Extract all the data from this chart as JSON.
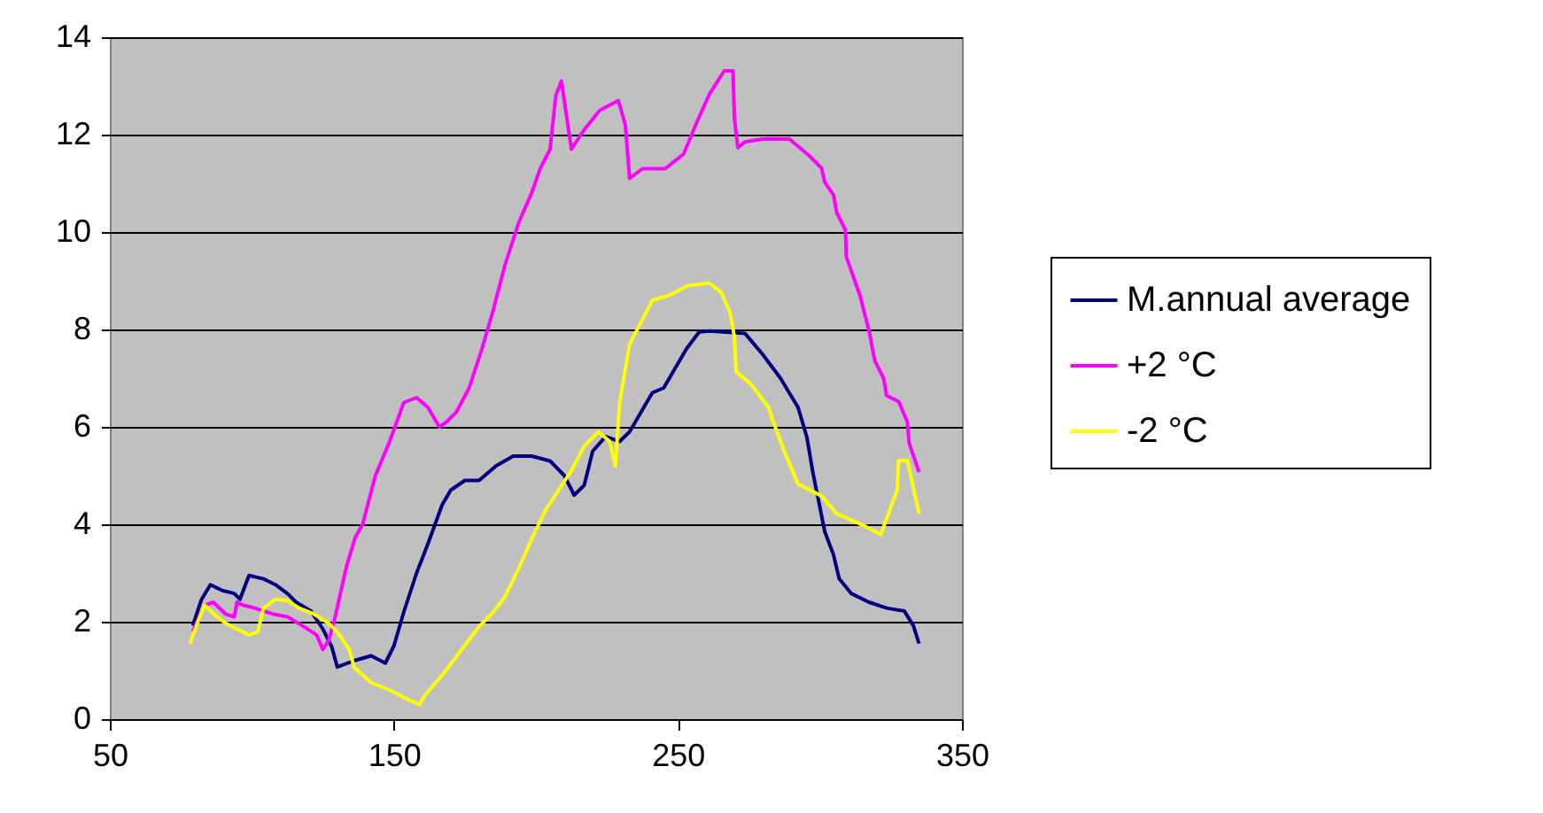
{
  "chart_data": {
    "type": "line",
    "xlim": [
      50,
      350
    ],
    "xticks": [
      50,
      150,
      250,
      350
    ],
    "ylim": [
      0,
      14
    ],
    "yticks": [
      0,
      2,
      4,
      6,
      8,
      10,
      12,
      14
    ],
    "grid": "y",
    "legend": "right",
    "marker": "none",
    "line_style": "solid",
    "series": [
      {
        "name": "M.annual average",
        "color": "#000080",
        "x": [
          79.2,
          82.3,
          85.4,
          89.6,
          93.8,
          95.8,
          99,
          104.1,
          108.3,
          112.5,
          115.6,
          120.8,
          125,
          128.1,
          130.1,
          136,
          142,
          147,
          150,
          153.5,
          158,
          162,
          167,
          170,
          175,
          180,
          186,
          192,
          198.5,
          205,
          210,
          213.5,
          217,
          220,
          224.5,
          229.5,
          233,
          237,
          241,
          245,
          248,
          253,
          257.5,
          261.1,
          273.6,
          279.8,
          286.1,
          292.3,
          295.4,
          297.5,
          299.6,
          301.7,
          304.8,
          306.8,
          311,
          317.3,
          323.5,
          329.7,
          332.9,
          334.9
        ],
        "values": [
          1.92,
          2.46,
          2.76,
          2.64,
          2.58,
          2.46,
          2.95,
          2.88,
          2.76,
          2.58,
          2.4,
          2.22,
          1.85,
          1.49,
          1.07,
          1.2,
          1.3,
          1.15,
          1.5,
          2.2,
          3.0,
          3.6,
          4.4,
          4.7,
          4.9,
          4.9,
          5.2,
          5.4,
          5.4,
          5.3,
          5.0,
          4.6,
          4.8,
          5.5,
          5.8,
          5.7,
          5.9,
          6.3,
          6.7,
          6.8,
          7.1,
          7.6,
          7.95,
          7.97,
          7.92,
          7.49,
          7.0,
          6.4,
          5.79,
          5.07,
          4.46,
          3.85,
          3.37,
          2.88,
          2.58,
          2.4,
          2.28,
          2.22,
          1.92,
          1.55
        ]
      },
      {
        "name": "+2 °C",
        "color": "#ff00ff",
        "x": [
          79.2,
          83.4,
          86.5,
          90.7,
          93.8,
          94.8,
          96.9,
          101,
          107.3,
          112.5,
          117.7,
          122.8,
          125,
          127,
          129.1,
          133.3,
          136.4,
          139,
          143.5,
          148.5,
          153.5,
          158,
          162,
          166,
          168.5,
          172,
          176.5,
          181,
          185,
          189,
          194,
          198.5,
          201.5,
          205,
          207,
          209,
          212.5,
          217,
          222.5,
          229,
          231.5,
          233,
          237.5,
          245.5,
          252,
          257,
          261.1,
          266.3,
          269.4,
          269.9,
          271.1,
          273.6,
          279.8,
          289.2,
          293.4,
          296.5,
          300.6,
          301.7,
          304.8,
          305.9,
          309,
          309.3,
          314.1,
          317.3,
          319.3,
          322.4,
          323.5,
          327.7,
          330.8,
          331.4,
          334.9
        ],
        "values": [
          1.8,
          2.34,
          2.4,
          2.16,
          2.1,
          2.4,
          2.34,
          2.28,
          2.16,
          2.1,
          1.92,
          1.73,
          1.43,
          1.61,
          2.04,
          3.13,
          3.73,
          4.0,
          5.0,
          5.7,
          6.5,
          6.6,
          6.4,
          6.0,
          6.1,
          6.3,
          6.8,
          7.6,
          8.4,
          9.3,
          10.2,
          10.8,
          11.3,
          11.7,
          12.8,
          13.1,
          11.7,
          12.1,
          12.5,
          12.7,
          12.2,
          11.1,
          11.3,
          11.3,
          11.6,
          12.3,
          12.83,
          13.31,
          13.31,
          12.34,
          11.73,
          11.85,
          11.91,
          11.91,
          11.71,
          11.55,
          11.31,
          11.02,
          10.76,
          10.4,
          10.04,
          9.49,
          8.7,
          7.97,
          7.36,
          7.0,
          6.64,
          6.52,
          6.1,
          5.67,
          5.07
        ]
      },
      {
        "name": "-2 °C",
        "color": "#ffff00",
        "x": [
          78.2,
          81.3,
          83.4,
          86.5,
          90.7,
          94.8,
          99,
          102.1,
          104.1,
          108.3,
          112.5,
          116.6,
          121.8,
          127,
          130.1,
          134.3,
          136,
          142,
          148.5,
          155,
          159,
          161,
          167,
          173.5,
          180,
          185,
          189,
          194,
          198.5,
          203.5,
          208,
          212.5,
          217,
          222,
          226,
          228,
          229.5,
          233,
          237.5,
          241,
          247,
          253.5,
          261.1,
          265.3,
          268.4,
          269.9,
          270.5,
          275.7,
          281.9,
          284,
          287.1,
          292.3,
          300.6,
          305.9,
          315.2,
          321.4,
          327.2,
          327.7,
          330.8,
          334.9
        ],
        "values": [
          1.55,
          2.04,
          2.34,
          2.16,
          1.97,
          1.85,
          1.73,
          1.79,
          2.28,
          2.46,
          2.43,
          2.28,
          2.16,
          1.97,
          1.79,
          1.43,
          1.07,
          0.75,
          0.6,
          0.4,
          0.3,
          0.5,
          0.9,
          1.4,
          1.9,
          2.2,
          2.5,
          3.1,
          3.7,
          4.3,
          4.7,
          5.1,
          5.6,
          5.9,
          5.7,
          5.2,
          6.5,
          7.7,
          8.2,
          8.6,
          8.7,
          8.9,
          8.95,
          8.76,
          8.34,
          7.85,
          7.13,
          6.88,
          6.4,
          6.04,
          5.55,
          4.83,
          4.58,
          4.22,
          3.98,
          3.79,
          4.7,
          5.31,
          5.31,
          4.22
        ]
      }
    ]
  }
}
